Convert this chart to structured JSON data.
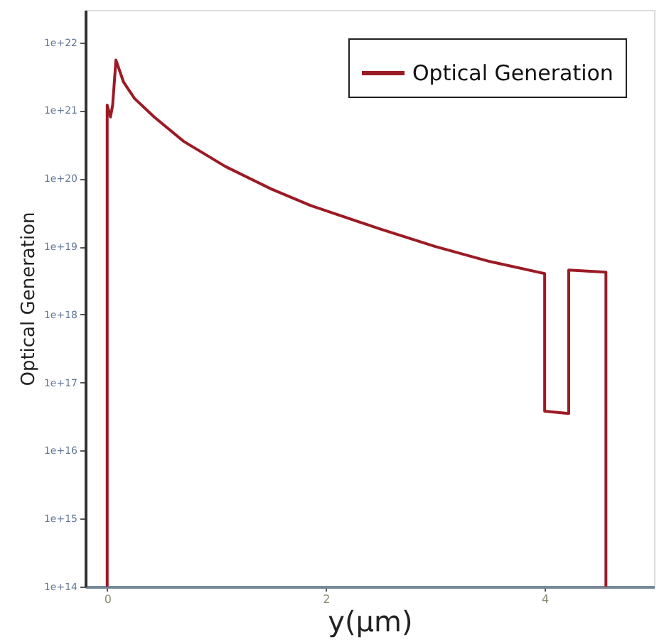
{
  "chart_data": {
    "type": "line",
    "xlabel": "y(μm)",
    "ylabel": "Optical Generation",
    "xlim": [
      -0.2,
      5
    ],
    "xticks": [
      0,
      2,
      4
    ],
    "ylim": [
      100000000000000.0,
      3e+22
    ],
    "log": "y",
    "yticks": [
      {
        "value": 100000000000000.0,
        "label": "1e+14"
      },
      {
        "value": 1000000000000000.0,
        "label": "1e+15"
      },
      {
        "value": 1e+16,
        "label": "1e+16"
      },
      {
        "value": 1e+17,
        "label": "1e+17"
      },
      {
        "value": 1e+18,
        "label": "1e+18"
      },
      {
        "value": 1e+19,
        "label": "1e+19"
      },
      {
        "value": 1e+20,
        "label": "1e+20"
      },
      {
        "value": 1e+21,
        "label": "1e+21"
      },
      {
        "value": 1e+22,
        "label": "1e+22"
      }
    ],
    "legend": "top right",
    "grid": false,
    "series": [
      {
        "name": "Optical Generation",
        "color": "#9b1b25",
        "x": [
          0,
          0,
          0.03,
          0.05,
          0.08,
          0.15,
          0.25,
          0.43,
          0.7,
          1.08,
          1.5,
          1.86,
          2.5,
          3.0,
          3.5,
          4.0,
          4.0,
          4.22,
          4.22,
          4.56,
          4.56
        ],
        "values": [
          100000000000000.0,
          1.2e+21,
          8e+20,
          1.2e+21,
          5.5e+21,
          2.6e+21,
          1.5e+21,
          8e+20,
          3.5e+20,
          1.5e+20,
          7e+19,
          4e+19,
          1.8e+19,
          1e+19,
          6e+18,
          4e+18,
          3.8e+16,
          3.5e+16,
          4.5e+18,
          4.2e+18,
          100000000000000.0
        ]
      }
    ]
  }
}
